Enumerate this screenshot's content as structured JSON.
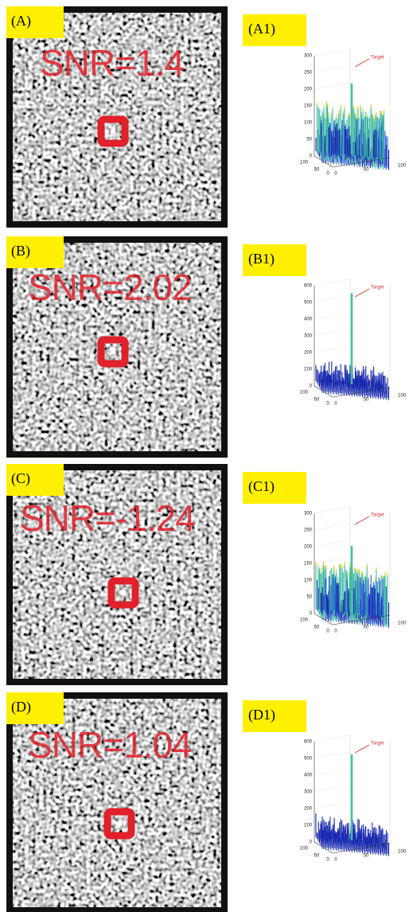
{
  "panels": [
    {
      "label": "(A)",
      "snr": "SNR=1.4",
      "plot": {
        "label": "(A1)",
        "zticks": [
          300,
          250,
          200,
          150,
          100,
          50,
          0
        ],
        "baseticks": [
          100,
          50,
          0,
          0,
          50,
          100
        ],
        "annotation": "Target"
      }
    },
    {
      "label": "(B)",
      "snr": "SNR=2.02",
      "plot": {
        "label": "(B1)",
        "zticks": [
          600,
          500,
          400,
          300,
          200,
          100,
          0
        ],
        "baseticks": [
          100,
          50,
          0,
          0,
          50,
          100
        ],
        "annotation": "Target"
      }
    },
    {
      "label": "(C)",
      "snr": "SNR=-1.24",
      "plot": {
        "label": "(C1)",
        "zticks": [
          300,
          250,
          200,
          150,
          100,
          50,
          0
        ],
        "baseticks": [
          100,
          50,
          0,
          0,
          50,
          100
        ],
        "annotation": "Target"
      }
    },
    {
      "label": "(D)",
      "snr": "SNR=1.04",
      "plot": {
        "label": "(D1)",
        "zticks": [
          600,
          500,
          400,
          300,
          200,
          100,
          0
        ],
        "baseticks": [
          100,
          50,
          0,
          0,
          50,
          100
        ],
        "annotation": "Target"
      }
    }
  ]
}
